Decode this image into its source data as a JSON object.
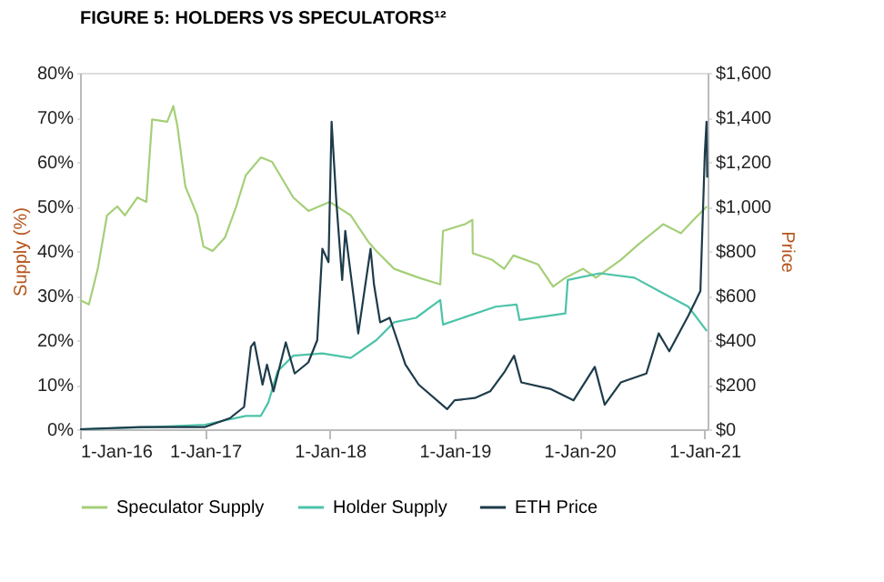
{
  "chart_data": {
    "type": "line",
    "title": "FIGURE 5: HOLDERS VS SPECULATORS¹²",
    "ylabel": "Supply (%)",
    "y2label": "Price",
    "xlim": [
      "2016-01-01",
      "2021-01-10"
    ],
    "xticks": [
      {
        "value": "2016-01-01",
        "label": "1-Jan-16"
      },
      {
        "value": "2017-01-01",
        "label": "1-Jan-17"
      },
      {
        "value": "2018-01-01",
        "label": "1-Jan-18"
      },
      {
        "value": "2019-01-01",
        "label": "1-Jan-19"
      },
      {
        "value": "2020-01-01",
        "label": "1-Jan-20"
      },
      {
        "value": "2021-01-01",
        "label": "1-Jan-21"
      }
    ],
    "ylim": [
      0,
      80
    ],
    "yticks": [
      {
        "value": 0,
        "label": "0%"
      },
      {
        "value": 10,
        "label": "10%"
      },
      {
        "value": 20,
        "label": "20%"
      },
      {
        "value": 30,
        "label": "30%"
      },
      {
        "value": 40,
        "label": "40%"
      },
      {
        "value": 50,
        "label": "50%"
      },
      {
        "value": 60,
        "label": "60%"
      },
      {
        "value": 70,
        "label": "70%"
      },
      {
        "value": 80,
        "label": "80%"
      }
    ],
    "y2lim": [
      0,
      1600
    ],
    "y2ticks": [
      {
        "value": 0,
        "label": "$0"
      },
      {
        "value": 200,
        "label": "$200"
      },
      {
        "value": 400,
        "label": "$400"
      },
      {
        "value": 600,
        "label": "$600"
      },
      {
        "value": 800,
        "label": "$800"
      },
      {
        "value": 1000,
        "label": "$1,000"
      },
      {
        "value": 1200,
        "label": "$1,200"
      },
      {
        "value": 1400,
        "label": "$1,400"
      },
      {
        "value": 1600,
        "label": "$1,600"
      }
    ],
    "grid": false,
    "legend": "bottom",
    "marker": "none",
    "line_style": "solid",
    "series": [
      {
        "name": "Speculator Supply",
        "color": "#a5cf78",
        "x": [
          "2016-01-01",
          "2016-01-27",
          "2016-02-22",
          "2016-03-20",
          "2016-04-19",
          "2016-05-11",
          "2016-06-17",
          "2016-07-13",
          "2016-07-30",
          "2016-09-12",
          "2016-09-30",
          "2016-10-12",
          "2016-11-04",
          "2016-12-09",
          "2016-12-27",
          "2017-01-23",
          "2017-02-28",
          "2017-04-02",
          "2017-04-30",
          "2017-06-13",
          "2017-07-16",
          "2017-09-16",
          "2017-10-30",
          "2018-01-01",
          "2018-03-03",
          "2018-04-24",
          "2018-05-17",
          "2018-07-08",
          "2018-09-18",
          "2018-11-20",
          "2018-11-28",
          "2019-01-31",
          "2019-02-22",
          "2019-02-23",
          "2019-04-21",
          "2019-05-26",
          "2019-06-22",
          "2019-09-02",
          "2019-10-16",
          "2019-11-21",
          "2020-01-12",
          "2020-02-18",
          "2020-05-01",
          "2020-06-22",
          "2020-09-02",
          "2020-10-24",
          "2020-11-30",
          "2021-01-08"
        ],
        "values": [
          29,
          28,
          36,
          48,
          50,
          48,
          52,
          51,
          69.5,
          69,
          72.5,
          68,
          54.5,
          48,
          41,
          40,
          43,
          50,
          57,
          61,
          60,
          52,
          49,
          51,
          48,
          42,
          40,
          36,
          34,
          32.5,
          44.5,
          46,
          47,
          39.5,
          38,
          36,
          39,
          37,
          32,
          34,
          36,
          34,
          38,
          41.5,
          46,
          44,
          47,
          50
        ]
      },
      {
        "name": "Holder Supply",
        "color": "#4dc3a9",
        "x": [
          "2016-01-01",
          "2016-07-30",
          "2017-01-01",
          "2017-02-28",
          "2017-04-30",
          "2017-06-13",
          "2017-07-05",
          "2017-08-01",
          "2017-09-16",
          "2017-12-10",
          "2018-03-03",
          "2018-05-17",
          "2018-07-08",
          "2018-09-10",
          "2018-11-20",
          "2018-11-28",
          "2019-05-01",
          "2019-07-01",
          "2019-07-10",
          "2019-11-21",
          "2019-11-28",
          "2020-03-01",
          "2020-06-10",
          "2020-09-02",
          "2020-11-15",
          "2021-01-08"
        ],
        "values": [
          0,
          0.5,
          1,
          2,
          3,
          3,
          6,
          13,
          16.5,
          17,
          16,
          20,
          24,
          25,
          29,
          23.5,
          27.5,
          28,
          24.5,
          26,
          33.5,
          35,
          34,
          30.5,
          27.5,
          22
        ]
      },
      {
        "name": "ETH Price",
        "color": "#1e3b4a",
        "axis": "y2",
        "x": [
          "2016-01-01",
          "2016-06-25",
          "2017-01-01",
          "2017-03-15",
          "2017-04-25",
          "2017-05-15",
          "2017-05-25",
          "2017-06-18",
          "2017-07-01",
          "2017-07-20",
          "2017-08-25",
          "2017-09-20",
          "2017-10-30",
          "2017-11-25",
          "2017-12-10",
          "2017-12-28",
          "2018-01-06",
          "2018-01-20",
          "2018-02-06",
          "2018-02-15",
          "2018-03-25",
          "2018-04-30",
          "2018-05-10",
          "2018-05-28",
          "2018-06-25",
          "2018-08-10",
          "2018-09-18",
          "2018-12-10",
          "2019-01-01",
          "2019-03-01",
          "2019-04-15",
          "2019-05-28",
          "2019-06-24",
          "2019-07-15",
          "2019-10-10",
          "2019-12-15",
          "2020-02-15",
          "2020-03-15",
          "2020-05-01",
          "2020-07-15",
          "2020-08-20",
          "2020-09-20",
          "2020-11-15",
          "2020-12-20",
          "2021-01-02",
          "2021-01-07",
          "2021-01-09"
        ],
        "values": [
          0,
          10,
          10,
          50,
          100,
          370,
          390,
          200,
          290,
          170,
          390,
          250,
          300,
          400,
          810,
          750,
          1380,
          1020,
          670,
          890,
          430,
          810,
          650,
          480,
          500,
          290,
          200,
          90,
          130,
          140,
          170,
          260,
          330,
          210,
          180,
          130,
          280,
          110,
          210,
          250,
          430,
          350,
          510,
          620,
          1240,
          1380,
          1130
        ]
      }
    ]
  }
}
